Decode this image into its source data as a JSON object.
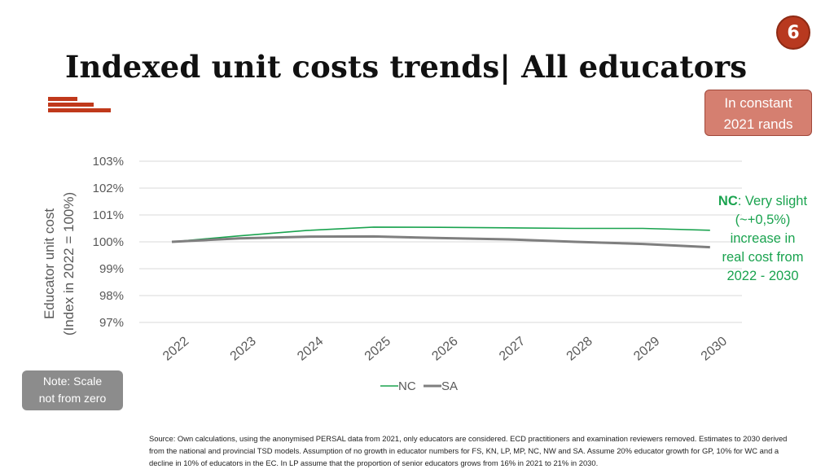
{
  "page_number": "6",
  "title": "Indexed unit costs trends| All educators",
  "badge": {
    "line1": "In constant",
    "line2": "2021 rands"
  },
  "note": {
    "line1": "Note: Scale",
    "line2": "not from zero"
  },
  "annotation": {
    "bold": "NC",
    "line1": ": Very slight",
    "line2": "(~+0,5%)",
    "line3": "increase in",
    "line4": "real cost from",
    "line5": "2022 - 2030"
  },
  "source": "Source: Own calculations, using the anonymised PERSAL data from 2021, only educators are considered. ECD practitioners and examination reviewers removed. Estimates to 2030 derived from the national and provincial TSD models. Assumption of no growth in educator numbers for FS, KN, LP, MP, NC, NW and SA. Assume 20% educator growth for GP, 10% for WC and a decline in 10% of educators in the EC. In LP assume that the proportion of senior educators grows from 16% in 2021 to 21% in 2030.",
  "chart_data": {
    "type": "line",
    "title": "",
    "xlabel": "",
    "ylabel_line1": "Educator unit cost",
    "ylabel_line2": "(Index in 2022 = 100%)",
    "categories": [
      "2022",
      "2023",
      "2024",
      "2025",
      "2026",
      "2027",
      "2028",
      "2029",
      "2030"
    ],
    "ylim": [
      97,
      103
    ],
    "yticks": [
      97,
      98,
      99,
      100,
      101,
      102,
      103
    ],
    "ytick_labels": [
      "97%",
      "98%",
      "99%",
      "100%",
      "101%",
      "102%",
      "103%"
    ],
    "grid": true,
    "legend": "bottom",
    "series": [
      {
        "name": "NC",
        "color": "#1aa34f",
        "values": [
          100.0,
          100.22,
          100.42,
          100.55,
          100.54,
          100.52,
          100.5,
          100.5,
          100.43
        ]
      },
      {
        "name": "SA",
        "color": "#7f7f7f",
        "values": [
          100.0,
          100.13,
          100.19,
          100.2,
          100.14,
          100.09,
          100.0,
          99.92,
          99.8
        ]
      }
    ]
  }
}
